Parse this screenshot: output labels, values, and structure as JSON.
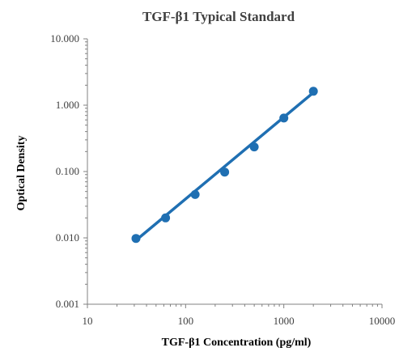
{
  "chart_data": {
    "type": "scatter",
    "title": "TGF-β1 Typical Standard",
    "xlabel": "TGF-β1 Concentration (pg/ml)",
    "ylabel": "Optical Density",
    "x_scale": "log",
    "y_scale": "log",
    "xlim": [
      10,
      10000
    ],
    "ylim": [
      0.001,
      10
    ],
    "x_ticks": [
      "10",
      "100",
      "1000",
      "10000"
    ],
    "y_ticks": [
      "0.001",
      "0.010",
      "0.100",
      "1.000",
      "10.000"
    ],
    "grid": false,
    "legend": "none",
    "series": [
      {
        "points": [
          {
            "x": 31.25,
            "y": 0.0098
          },
          {
            "x": 62.5,
            "y": 0.02
          },
          {
            "x": 125,
            "y": 0.045
          },
          {
            "x": 250,
            "y": 0.098
          },
          {
            "x": 500,
            "y": 0.235
          },
          {
            "x": 1000,
            "y": 0.64
          },
          {
            "x": 2000,
            "y": 1.62
          }
        ],
        "fit_line": [
          {
            "x": 31.25,
            "y": 0.0092
          },
          {
            "x": 2000,
            "y": 1.55
          }
        ]
      }
    ],
    "colors": {
      "series": "#1f6fb2",
      "axis": "#808080"
    }
  }
}
